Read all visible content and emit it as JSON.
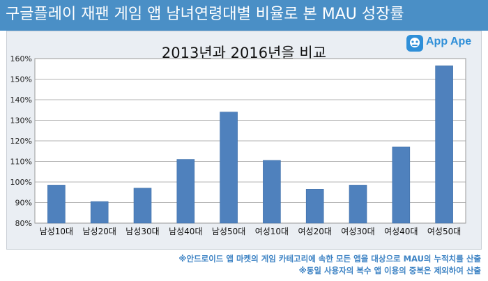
{
  "header": {
    "title": "구글플레이 재팬 게임 앱 남녀연령대별 비율로 본 MAU 성장률"
  },
  "logo": {
    "text": "App Ape"
  },
  "footnotes": [
    "※안드로이드 앱 마켓의 게임 카테고리에 속한 모든 앱을 대상으로 MAU의 누적치를 산출",
    "※동일 사용자의 복수 앱 이용의 중복은 제외하여 산출"
  ],
  "colors": {
    "header": "#4a8fc6",
    "bar": "#4f81bd",
    "panel": "#eaeef3",
    "footnote": "#3d83c4"
  },
  "chart_data": {
    "type": "bar",
    "title": "2013년과 2016년을 비교",
    "xlabel": "",
    "ylabel": "",
    "categories": [
      "남성10대",
      "남성20대",
      "남성30대",
      "남성40대",
      "남성50대",
      "여성10대",
      "여성20대",
      "여성30대",
      "여성40대",
      "여성50대"
    ],
    "values": [
      98.5,
      90.5,
      97,
      111,
      134,
      110.5,
      96.5,
      98.5,
      117,
      156.5
    ],
    "ylim": [
      80,
      160
    ],
    "yticks": [
      80,
      90,
      100,
      110,
      120,
      130,
      140,
      150,
      160
    ],
    "ytick_labels": [
      "80%",
      "90%",
      "100%",
      "110%",
      "120%",
      "130%",
      "140%",
      "150%",
      "160%"
    ],
    "grid": true,
    "legend": "none"
  }
}
